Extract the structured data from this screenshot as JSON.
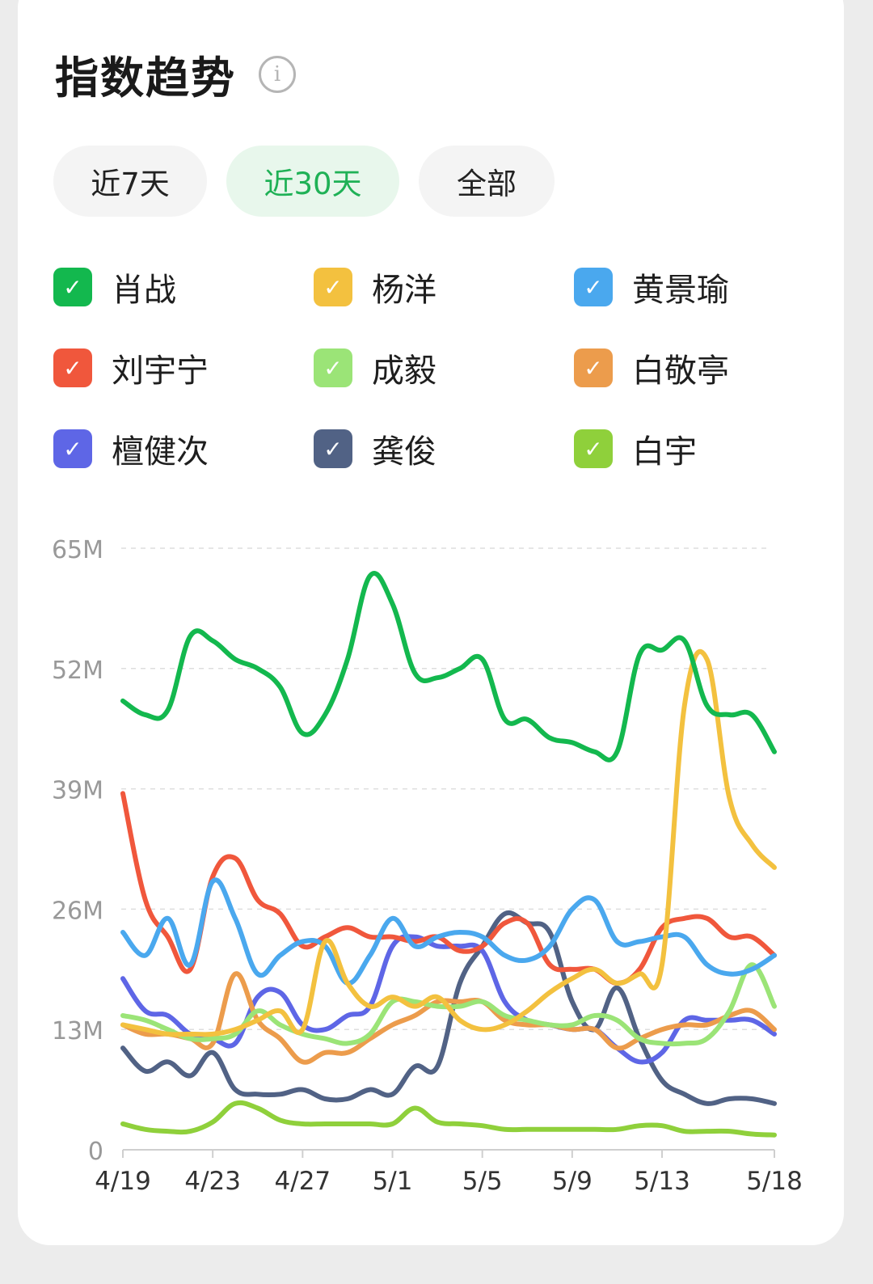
{
  "header": {
    "title": "指数趋势",
    "info_icon": "info-icon"
  },
  "tabs": [
    {
      "label": "近7天",
      "active": false
    },
    {
      "label": "近30天",
      "active": true
    },
    {
      "label": "全部",
      "active": false
    }
  ],
  "colors": {
    "active_tab_text": "#1fb156",
    "active_tab_bg": "#e8f7ec"
  },
  "legend": [
    {
      "name": "肖战",
      "color": "#13b84e",
      "checked": true
    },
    {
      "name": "杨洋",
      "color": "#f3c13f",
      "checked": true
    },
    {
      "name": "黄景瑜",
      "color": "#4aa8ee",
      "checked": true
    },
    {
      "name": "刘宇宁",
      "color": "#f0573c",
      "checked": true
    },
    {
      "name": "成毅",
      "color": "#9be477",
      "checked": true
    },
    {
      "name": "白敬亭",
      "color": "#ec9c4c",
      "checked": true
    },
    {
      "name": "檀健次",
      "color": "#5e66e6",
      "checked": true
    },
    {
      "name": "龚俊",
      "color": "#516285",
      "checked": true
    },
    {
      "name": "白宇",
      "color": "#8fd03b",
      "checked": true
    }
  ],
  "chart_data": {
    "type": "line",
    "title": "",
    "xlabel": "",
    "ylabel": "",
    "y_ticks": [
      "0",
      "13M",
      "26M",
      "39M",
      "52M",
      "65M"
    ],
    "y_tick_values": [
      0,
      13,
      26,
      39,
      52,
      65
    ],
    "ylim": [
      0,
      65
    ],
    "x_ticks": [
      "4/19",
      "4/23",
      "4/27",
      "5/1",
      "5/5",
      "5/9",
      "5/13",
      "5/18"
    ],
    "x_tick_day_index": [
      0,
      4,
      8,
      12,
      16,
      20,
      24,
      29
    ],
    "x": [
      "4/19",
      "4/20",
      "4/21",
      "4/22",
      "4/23",
      "4/24",
      "4/25",
      "4/26",
      "4/27",
      "4/28",
      "4/29",
      "4/30",
      "5/1",
      "5/2",
      "5/3",
      "5/4",
      "5/5",
      "5/6",
      "5/7",
      "5/8",
      "5/9",
      "5/10",
      "5/11",
      "5/12",
      "5/13",
      "5/14",
      "5/15",
      "5/16",
      "5/17",
      "5/18"
    ],
    "grid": true,
    "grid_style": "dashed horizontal",
    "unit": "M",
    "series": [
      {
        "name": "肖战",
        "color": "#13b84e",
        "values": [
          48.5,
          47,
          47.5,
          55.5,
          55,
          53,
          52,
          50,
          45,
          47,
          53,
          62,
          59,
          51.5,
          51,
          52,
          53,
          46.5,
          46.5,
          44.5,
          44,
          43,
          43,
          53.5,
          54,
          55,
          48,
          47,
          47,
          43
        ]
      },
      {
        "name": "杨洋",
        "color": "#f3c13f",
        "values": [
          13.5,
          13,
          12.5,
          12.5,
          12.5,
          13,
          14,
          15,
          13,
          22.5,
          18,
          15.5,
          16.5,
          15.5,
          16.5,
          14,
          13,
          13.5,
          15,
          17,
          18.5,
          19.5,
          18,
          19,
          20,
          48,
          53,
          38,
          33,
          30.5
        ]
      },
      {
        "name": "黄景瑜",
        "color": "#4aa8ee",
        "values": [
          23.5,
          21,
          25,
          20,
          29,
          25,
          19,
          21,
          22.5,
          22,
          18,
          21,
          25,
          22,
          23,
          23.5,
          23,
          21,
          20.5,
          22,
          26,
          27,
          22.5,
          22.5,
          23,
          23,
          20,
          19,
          19.5,
          21
        ]
      },
      {
        "name": "刘宇宁",
        "color": "#f0573c",
        "values": [
          38.5,
          27,
          23,
          19.5,
          29.5,
          31.5,
          27,
          25.5,
          22,
          23,
          24,
          23,
          23,
          22.5,
          23,
          21.5,
          22,
          24.5,
          24.5,
          20,
          19.5,
          19.5,
          18,
          19.5,
          24,
          25,
          25,
          23,
          23,
          21
        ]
      },
      {
        "name": "成毅",
        "color": "#9be477",
        "values": [
          14.5,
          14,
          13,
          12,
          12,
          12.5,
          15,
          13.5,
          12.5,
          12,
          11.5,
          12.5,
          16,
          16,
          15.5,
          15.5,
          16,
          14.5,
          14,
          13.5,
          13.5,
          14.5,
          14,
          12,
          11.5,
          11.5,
          12,
          15,
          20,
          15.5
        ]
      },
      {
        "name": "白敬亭",
        "color": "#ec9c4c",
        "values": [
          13.5,
          12.5,
          12.5,
          12,
          11.5,
          19,
          14,
          12,
          9.5,
          10.5,
          10.5,
          12,
          13.5,
          14.5,
          16,
          16,
          16,
          14,
          13.5,
          13.5,
          13,
          13,
          11,
          12,
          13,
          13.5,
          13.5,
          14.5,
          15,
          13
        ]
      },
      {
        "name": "檀健次",
        "color": "#5e66e6",
        "values": [
          18.5,
          15,
          14.5,
          12.5,
          12,
          11.5,
          16.5,
          17,
          13.5,
          13,
          14.5,
          15.5,
          22,
          23,
          22,
          22,
          21.5,
          16,
          14,
          13.5,
          13,
          13,
          11,
          9.5,
          10.5,
          14,
          14,
          14,
          14,
          12.5
        ]
      },
      {
        "name": "龚俊",
        "color": "#516285",
        "values": [
          11,
          8.5,
          9.5,
          8,
          10.5,
          6.5,
          6,
          6,
          6.5,
          5.5,
          5.5,
          6.5,
          6,
          9,
          9,
          18,
          22,
          25.5,
          24.5,
          23.5,
          16,
          13,
          17.5,
          12,
          7.5,
          6,
          5,
          5.5,
          5.5,
          5
        ]
      },
      {
        "name": "白宇",
        "color": "#8fd03b",
        "values": [
          2.8,
          2.2,
          2,
          2,
          3,
          5,
          4.5,
          3.2,
          2.8,
          2.8,
          2.8,
          2.8,
          2.8,
          4.5,
          3,
          2.8,
          2.6,
          2.2,
          2.2,
          2.2,
          2.2,
          2.2,
          2.2,
          2.6,
          2.6,
          2,
          2,
          2,
          1.7,
          1.6
        ]
      }
    ]
  }
}
